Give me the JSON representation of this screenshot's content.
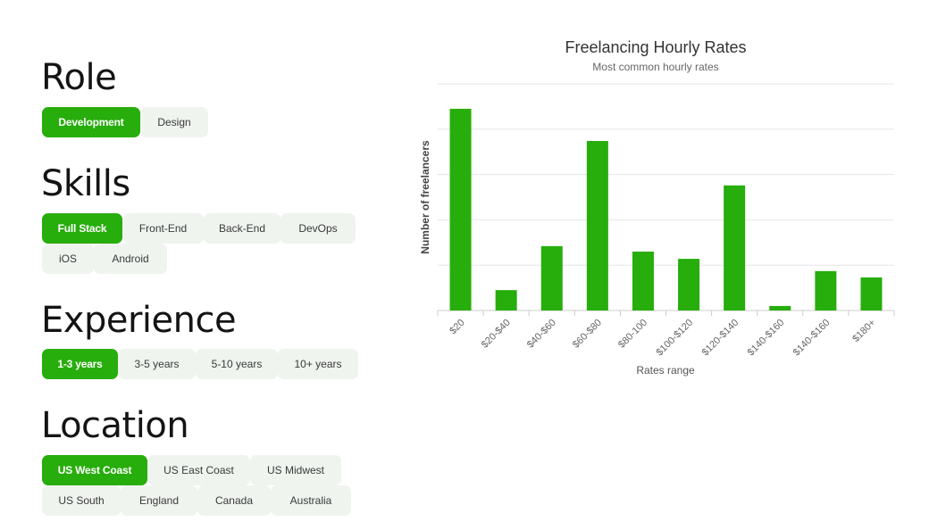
{
  "filters": {
    "role": {
      "title": "Role",
      "options": [
        "Development",
        "Design"
      ],
      "selected": "Development"
    },
    "skills": {
      "title": "Skills",
      "options": [
        "Full Stack",
        "Front-End",
        "Back-End",
        "DevOps",
        "iOS",
        "Android"
      ],
      "selected": "Full Stack"
    },
    "experience": {
      "title": "Experience",
      "options": [
        "1-3 years",
        "3-5 years",
        "5-10 years",
        "10+ years"
      ],
      "selected": "1-3 years"
    },
    "location": {
      "title": "Location",
      "options": [
        "US West Coast",
        "US East Coast",
        "US Midwest",
        "US South",
        "England",
        "Canada",
        "Australia"
      ],
      "selected": "US West Coast"
    }
  },
  "chart_data": {
    "type": "bar",
    "title": "Freelancing Hourly Rates",
    "subtitle": "Most common hourly rates",
    "xlabel": "Rates range",
    "ylabel": "Number of freelancers",
    "categories": [
      "$20",
      "$20-$40",
      "$40-$60",
      "$60-$80",
      "$80-100",
      "$100-$120",
      "$120-$140",
      "$140-$160",
      "$140-$160",
      "$180+"
    ],
    "values": [
      44.5,
      4.5,
      14.2,
      37.4,
      13,
      11.4,
      27.6,
      1,
      8.7,
      7.3
    ],
    "ylim": [
      0,
      50
    ],
    "yticks": [
      0,
      10,
      20,
      30,
      40,
      50
    ],
    "show_y_tick_labels": false,
    "grid": true,
    "bar_color": "#27ad0c",
    "legend": "none"
  }
}
